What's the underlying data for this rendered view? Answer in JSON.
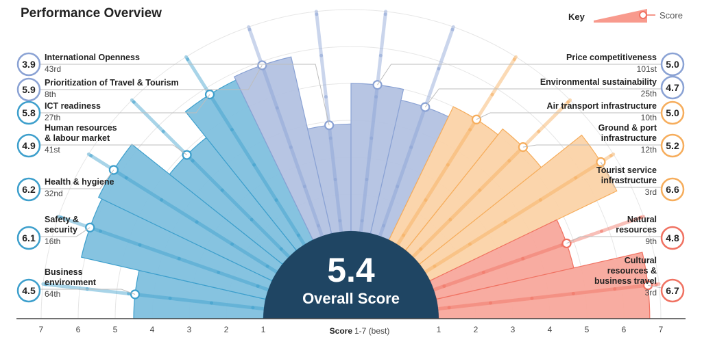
{
  "title": "Performance Overview",
  "key": {
    "label": "Key",
    "score_label": "Score"
  },
  "overall": {
    "value": "5.4",
    "label": "Overall Score"
  },
  "axis": {
    "title": "Score",
    "range_note": "1-7 (best)",
    "left_ticks": [
      "7",
      "6",
      "5",
      "4",
      "3",
      "2",
      "1"
    ],
    "right_ticks": [
      "1",
      "2",
      "3",
      "4",
      "5",
      "6",
      "7"
    ]
  },
  "colors": {
    "blue_dark": "#3d9fcc",
    "blue_fill": "#7fc0de",
    "lavender": "#8aa2d4",
    "lavender_fill": "#b3c2e2",
    "orange": "#f6ad5c",
    "orange_fill": "#fbd3a8",
    "salmon": "#f07262",
    "salmon_fill": "#f8a89c",
    "center": "#1f4563"
  },
  "chart_data": {
    "type": "radial-bar",
    "title": "Performance Overview",
    "scale": [
      1,
      7
    ],
    "overall_score": 5.4,
    "pillars": [
      {
        "name": "Business environment",
        "score": 4.5,
        "rank": "64th",
        "group": "blue"
      },
      {
        "name": "Safety & security",
        "score": 6.1,
        "rank": "16th",
        "group": "blue"
      },
      {
        "name": "Health & hygiene",
        "score": 6.2,
        "rank": "32nd",
        "group": "blue"
      },
      {
        "name": "Human resources & labour market",
        "score": 4.9,
        "rank": "41st",
        "group": "blue"
      },
      {
        "name": "ICT readiness",
        "score": 5.8,
        "rank": "27th",
        "group": "blue"
      },
      {
        "name": "Prioritization of Travel & Tourism",
        "score": 5.9,
        "rank": "8th",
        "group": "lavender"
      },
      {
        "name": "International Openness",
        "score": 3.9,
        "rank": "43rd",
        "group": "lavender"
      },
      {
        "name": "Price competitiveness",
        "score": 5.0,
        "rank": "101st",
        "group": "lavender"
      },
      {
        "name": "Environmental sustainability",
        "score": 4.7,
        "rank": "25th",
        "group": "lavender"
      },
      {
        "name": "Air transport infrastructure",
        "score": 5.0,
        "rank": "10th",
        "group": "orange"
      },
      {
        "name": "Ground & port infrastructure",
        "score": 5.2,
        "rank": "12th",
        "group": "orange"
      },
      {
        "name": "Tourist service infrastructure",
        "score": 6.6,
        "rank": "3rd",
        "group": "orange"
      },
      {
        "name": "Natural resources",
        "score": 4.8,
        "rank": "9th",
        "group": "salmon"
      },
      {
        "name": "Cultural resources & business travel",
        "score": 6.7,
        "rank": "3rd",
        "group": "salmon"
      }
    ]
  },
  "labels": [
    {
      "title": "International Openness",
      "score": "3.9",
      "rank": "43rd"
    },
    {
      "title": "Prioritization of Travel & Tourism",
      "score": "5.9",
      "rank": "8th"
    },
    {
      "title": "ICT readiness",
      "score": "5.8",
      "rank": "27th"
    },
    {
      "title1": "Human resources",
      "title2": "& labour market",
      "score": "4.9",
      "rank": "41st"
    },
    {
      "title": "Health & hygiene",
      "score": "6.2",
      "rank": "32nd"
    },
    {
      "title1": "Safety &",
      "title2": "security",
      "score": "6.1",
      "rank": "16th"
    },
    {
      "title1": "Business",
      "title2": "environment",
      "score": "4.5",
      "rank": "64th"
    },
    {
      "title": "Price competitiveness",
      "score": "5.0",
      "rank": "101st"
    },
    {
      "title": "Environmental sustainability",
      "score": "4.7",
      "rank": "25th"
    },
    {
      "title": "Air transport infrastructure",
      "score": "5.0",
      "rank": "10th"
    },
    {
      "title1": "Ground & port",
      "title2": "infrastructure",
      "score": "5.2",
      "rank": "12th"
    },
    {
      "title1": "Tourist service",
      "title2": "infrastructure",
      "score": "6.6",
      "rank": "3rd"
    },
    {
      "title1": "Natural",
      "title2": "resources",
      "score": "4.8",
      "rank": "9th"
    },
    {
      "title1": "Cultural",
      "title2": "resources &",
      "title3": "business travel",
      "score": "6.7",
      "rank": "3rd"
    }
  ]
}
